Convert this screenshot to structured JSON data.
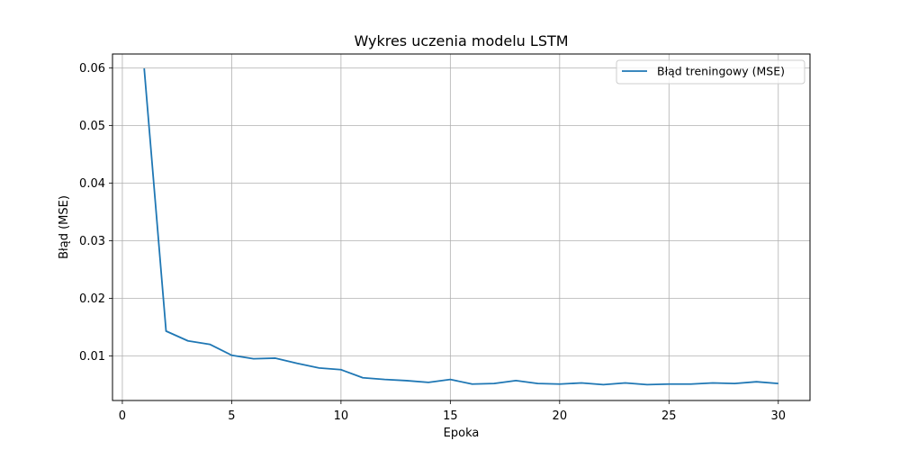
{
  "chart_data": {
    "type": "line",
    "title": "Wykres uczenia modelu LSTM",
    "xlabel": "Epoka",
    "ylabel": "Błąd (MSE)",
    "xlim": [
      -0.45,
      31.45
    ],
    "ylim": [
      0.00225,
      0.0624
    ],
    "xticks": [
      0,
      5,
      10,
      15,
      20,
      25,
      30
    ],
    "xtick_labels": [
      "0",
      "5",
      "10",
      "15",
      "20",
      "25",
      "30"
    ],
    "yticks": [
      0.01,
      0.02,
      0.03,
      0.04,
      0.05,
      0.06
    ],
    "ytick_labels": [
      "0.01",
      "0.02",
      "0.03",
      "0.04",
      "0.05",
      "0.06"
    ],
    "grid": true,
    "legend_position": "top-right",
    "series": [
      {
        "name": "Błąd treningowy (MSE)",
        "color": "#1f77b4",
        "x": [
          1,
          2,
          3,
          4,
          5,
          6,
          7,
          8,
          9,
          10,
          11,
          12,
          13,
          14,
          15,
          16,
          17,
          18,
          19,
          20,
          21,
          22,
          23,
          24,
          25,
          26,
          27,
          28,
          29,
          30
        ],
        "y": [
          0.0599,
          0.0143,
          0.0126,
          0.012,
          0.0101,
          0.0095,
          0.0096,
          0.0087,
          0.0079,
          0.0076,
          0.0062,
          0.0059,
          0.0057,
          0.0054,
          0.0059,
          0.0051,
          0.0052,
          0.0057,
          0.0052,
          0.0051,
          0.0053,
          0.005,
          0.0053,
          0.005,
          0.0051,
          0.0051,
          0.0053,
          0.0052,
          0.0055,
          0.0052
        ]
      }
    ]
  }
}
